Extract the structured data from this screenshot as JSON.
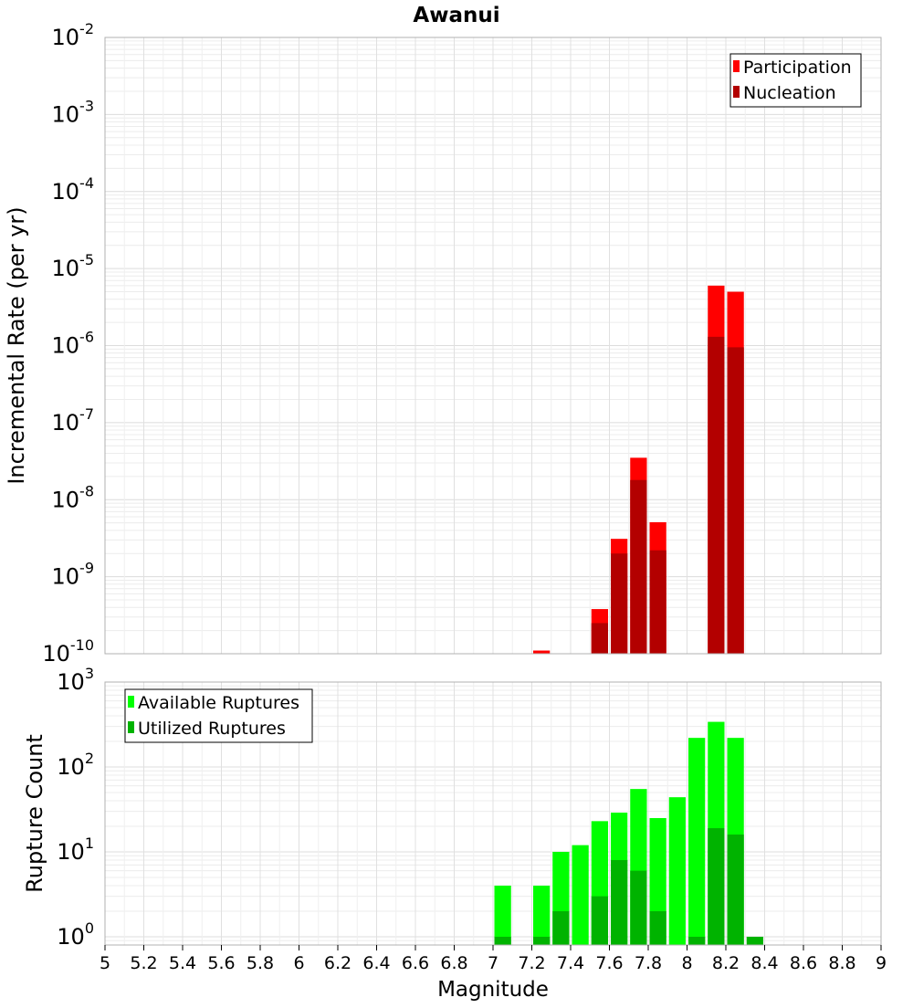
{
  "chart_data": [
    {
      "type": "bar",
      "title": "Awanui",
      "ylabel": "Incremental Rate (per yr)",
      "xlabel": "",
      "y_scale": "log",
      "ylim": [
        1e-10,
        0.01
      ],
      "xlim": [
        5,
        9
      ],
      "y_tick_exponents": [
        -10,
        -9,
        -8,
        -7,
        -6,
        -5,
        -4,
        -3,
        -2
      ],
      "legend": {
        "position": "top-right",
        "entries": [
          {
            "label": "Participation",
            "color": "#ff0000"
          },
          {
            "label": "Nucleation",
            "color": "#b30000"
          }
        ]
      },
      "series": [
        {
          "name": "Participation",
          "color": "#ff0000",
          "x": [
            7.25,
            7.55,
            7.65,
            7.75,
            7.85,
            8.15,
            8.25
          ],
          "values": [
            1.1e-10,
            3.8e-10,
            3.1e-09,
            3.5e-08,
            5.1e-09,
            6e-06,
            5e-06
          ]
        },
        {
          "name": "Nucleation",
          "color": "#b30000",
          "x": [
            7.55,
            7.65,
            7.75,
            7.85,
            8.15,
            8.25
          ],
          "values": [
            2.5e-10,
            2e-09,
            1.8e-08,
            2.2e-09,
            1.3e-06,
            9.5e-07
          ]
        }
      ]
    },
    {
      "type": "bar",
      "title": "",
      "ylabel": "Rupture Count",
      "xlabel": "Magnitude",
      "y_scale": "log",
      "ylim": [
        0.8,
        1000
      ],
      "xlim": [
        5,
        9
      ],
      "y_tick_exponents": [
        0,
        1,
        2,
        3
      ],
      "x_ticks": [
        "5",
        "5.2",
        "5.4",
        "5.6",
        "5.8",
        "6",
        "6.2",
        "6.4",
        "6.6",
        "6.8",
        "7",
        "7.2",
        "7.4",
        "7.6",
        "7.8",
        "8",
        "8.2",
        "8.4",
        "8.6",
        "8.8",
        "9"
      ],
      "legend": {
        "position": "top-left",
        "entries": [
          {
            "label": "Available Ruptures",
            "color": "#00ff00"
          },
          {
            "label": "Utilized Ruptures",
            "color": "#00b300"
          }
        ]
      },
      "series": [
        {
          "name": "Available Ruptures",
          "color": "#00ff00",
          "x": [
            7.05,
            7.25,
            7.35,
            7.45,
            7.55,
            7.65,
            7.75,
            7.85,
            7.95,
            8.05,
            8.15,
            8.25
          ],
          "values": [
            4,
            4,
            10,
            12,
            23,
            29,
            55,
            25,
            44,
            220,
            340,
            220
          ]
        },
        {
          "name": "Utilized Ruptures",
          "color": "#00b300",
          "x": [
            7.05,
            7.25,
            7.35,
            7.55,
            7.65,
            7.75,
            7.85,
            8.05,
            8.15,
            8.25,
            8.35
          ],
          "values": [
            1,
            1,
            2,
            3,
            8,
            6,
            2,
            1,
            19,
            16,
            1
          ]
        }
      ]
    }
  ]
}
